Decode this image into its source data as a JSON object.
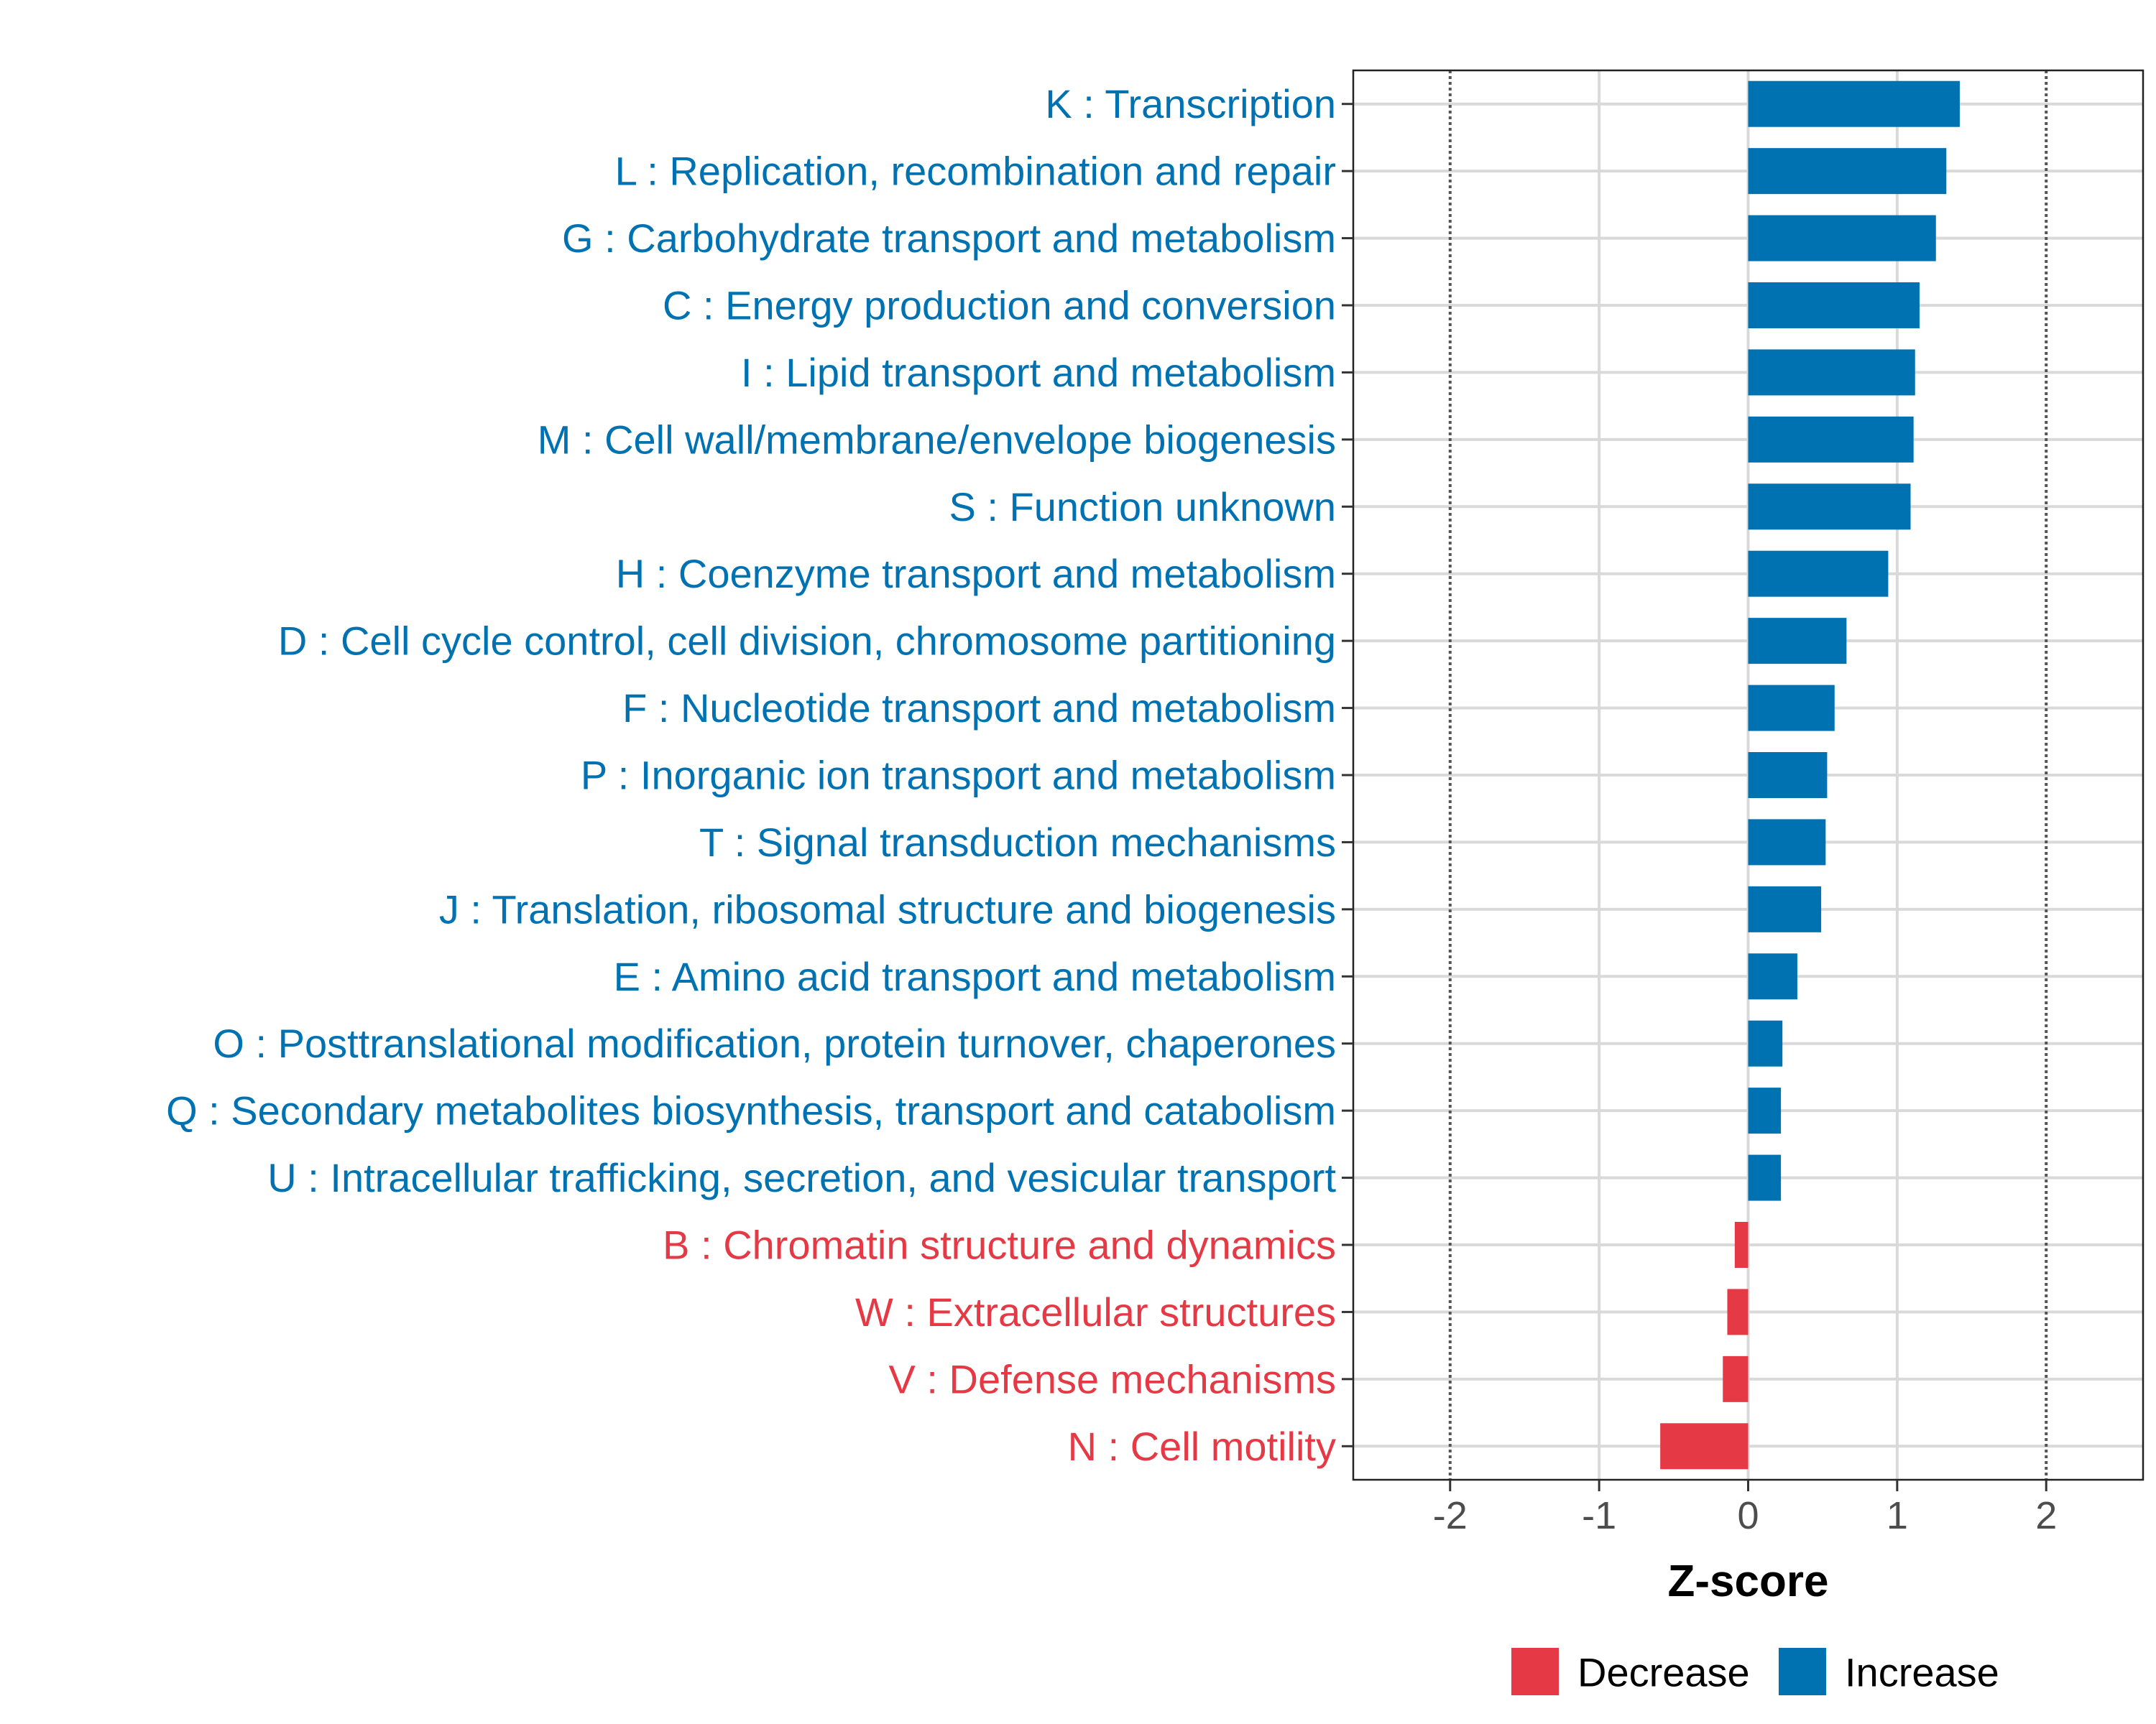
{
  "colors": {
    "increase": "#0072B2",
    "decrease": "#E63946",
    "axis_text": "#4d4d4d",
    "grid": "#d9d9d9",
    "reference_line": "#555555"
  },
  "chart_data": {
    "type": "bar",
    "orientation": "horizontal",
    "xlabel": "Z-score",
    "xlim": [
      -2.65,
      2.65
    ],
    "x_ticks": [
      -2,
      -1,
      0,
      1,
      2
    ],
    "x_tick_labels": [
      "-2",
      "-1",
      "0",
      "1",
      "2"
    ],
    "reference_lines": [
      -2,
      2
    ],
    "grid": true,
    "legend": {
      "placement": "bottom",
      "entries": [
        {
          "label": "Decrease",
          "color_key": "decrease"
        },
        {
          "label": "Increase",
          "color_key": "increase"
        }
      ]
    },
    "categories": [
      "K : Transcription",
      "L : Replication, recombination and repair",
      "G : Carbohydrate transport and metabolism",
      "C : Energy production and conversion",
      "I : Lipid transport and metabolism",
      "M : Cell wall/membrane/envelope biogenesis",
      "S : Function unknown",
      "H : Coenzyme transport and metabolism",
      "D : Cell cycle control, cell division, chromosome partitioning",
      "F : Nucleotide transport and metabolism",
      "P : Inorganic ion transport and metabolism",
      "T : Signal transduction mechanisms",
      "J : Translation, ribosomal structure and biogenesis",
      "E : Amino acid transport and metabolism",
      "O : Posttranslational modification, protein turnover, chaperones",
      "Q : Secondary metabolites biosynthesis, transport and catabolism",
      "U : Intracellular trafficking, secretion, and vesicular transport",
      "B : Chromatin structure and dynamics",
      "W : Extracellular structures",
      "V : Defense mechanisms",
      "N : Cell motility"
    ],
    "values": [
      1.42,
      1.33,
      1.26,
      1.15,
      1.12,
      1.11,
      1.09,
      0.94,
      0.66,
      0.58,
      0.53,
      0.52,
      0.49,
      0.33,
      0.23,
      0.22,
      0.22,
      -0.09,
      -0.14,
      -0.17,
      -0.59
    ],
    "direction": [
      "Increase",
      "Increase",
      "Increase",
      "Increase",
      "Increase",
      "Increase",
      "Increase",
      "Increase",
      "Increase",
      "Increase",
      "Increase",
      "Increase",
      "Increase",
      "Increase",
      "Increase",
      "Increase",
      "Increase",
      "Decrease",
      "Decrease",
      "Decrease",
      "Decrease"
    ]
  }
}
